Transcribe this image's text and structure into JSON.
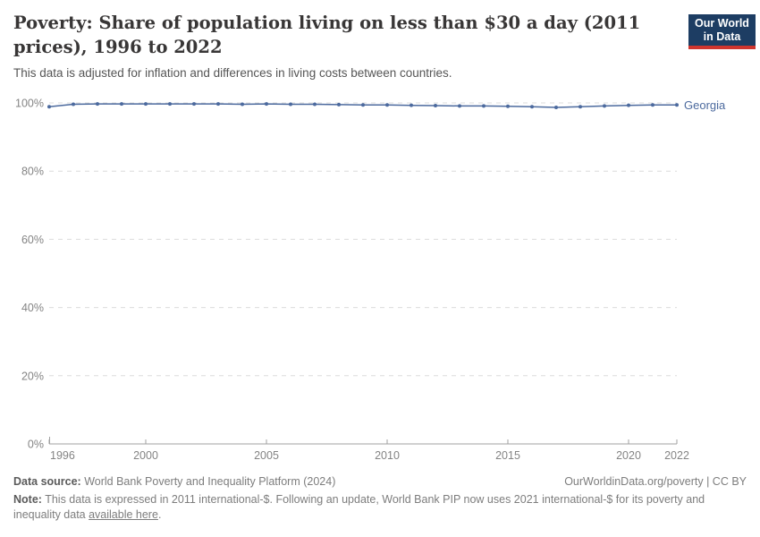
{
  "header": {
    "title_line1": "Poverty: Share of population living on less than $30 a day (2011",
    "title_line2": "prices), 1996 to 2022",
    "subtitle": "This data is adjusted for inflation and differences in living costs between countries.",
    "logo": {
      "line1": "Our World",
      "line2": "in Data"
    }
  },
  "colors": {
    "series_blue": "#4c6a9e",
    "logo_navy": "#1d3d63",
    "logo_red": "#cf352e",
    "title_text": "#383636",
    "axis_text": "#848484",
    "gridline": "#dcdcdc",
    "axis_line": "#a1a1a1"
  },
  "chart_data": {
    "type": "line",
    "title": "Poverty: Share of population living on less than $30 a day (2011 prices), 1996 to 2022",
    "subtitle": "This data is adjusted for inflation and differences in living costs between countries.",
    "x": [
      1996,
      1997,
      1998,
      1999,
      2000,
      2001,
      2002,
      2003,
      2004,
      2005,
      2006,
      2007,
      2008,
      2009,
      2010,
      2011,
      2012,
      2013,
      2014,
      2015,
      2016,
      2017,
      2018,
      2019,
      2020,
      2021,
      2022
    ],
    "series": [
      {
        "name": "Georgia",
        "color": "#4c6a9e",
        "values": [
          98.9,
          99.6,
          99.7,
          99.7,
          99.7,
          99.7,
          99.7,
          99.7,
          99.6,
          99.7,
          99.6,
          99.6,
          99.5,
          99.4,
          99.4,
          99.3,
          99.2,
          99.1,
          99.1,
          99.0,
          98.9,
          98.7,
          98.9,
          99.1,
          99.3,
          99.4,
          99.4
        ]
      }
    ],
    "xlabel": "",
    "ylabel": "",
    "ylim": [
      0,
      100
    ],
    "xlim": [
      1996,
      2022
    ],
    "y_ticks": [
      0,
      20,
      40,
      60,
      80,
      100
    ],
    "y_tick_suffix": "%",
    "x_ticks": [
      1996,
      2000,
      2005,
      2010,
      2015,
      2020,
      2022
    ],
    "grid": "horizontal-dashed",
    "legend_position": "series label right of last point",
    "markers": true
  },
  "footer": {
    "datasource_label": "Data source:",
    "datasource_text": " World Bank Poverty and Inequality Platform (2024)",
    "rights": "OurWorldinData.org/poverty | CC BY",
    "note_label": "Note:",
    "note_part1": " This data is expressed in 2011 international-$. Following an update, World Bank PIP now uses 2021 international-$ for its poverty and inequality data ",
    "note_link": "available here",
    "note_end": "."
  }
}
